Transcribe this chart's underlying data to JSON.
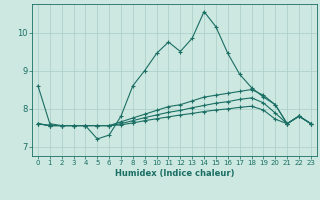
{
  "xlabel": "Humidex (Indice chaleur)",
  "background_color": "#cce8e0",
  "grid_color": "#aacec6",
  "line_color": "#1a6e64",
  "xlim": [
    -0.5,
    23.5
  ],
  "ylim": [
    6.75,
    10.75
  ],
  "yticks": [
    7,
    8,
    9,
    10
  ],
  "xticks": [
    0,
    1,
    2,
    3,
    4,
    5,
    6,
    7,
    8,
    9,
    10,
    11,
    12,
    13,
    14,
    15,
    16,
    17,
    18,
    19,
    20,
    21,
    22,
    23
  ],
  "lines": [
    {
      "x": [
        0,
        1,
        2,
        3,
        4,
        5,
        6,
        7,
        8,
        9,
        10,
        11,
        12,
        13,
        14,
        15,
        16,
        17,
        18,
        19,
        20,
        21,
        22,
        23
      ],
      "y": [
        8.6,
        7.6,
        7.55,
        7.55,
        7.55,
        7.2,
        7.3,
        7.8,
        8.6,
        9.0,
        9.45,
        9.75,
        9.5,
        9.85,
        10.55,
        10.15,
        9.45,
        8.9,
        8.55,
        8.3,
        8.1,
        7.6,
        7.8,
        7.6
      ]
    },
    {
      "x": [
        0,
        1,
        2,
        3,
        4,
        5,
        6,
        7,
        8,
        9,
        10,
        11,
        12,
        13,
        14,
        15,
        16,
        17,
        18,
        19,
        20,
        21,
        22,
        23
      ],
      "y": [
        7.6,
        7.55,
        7.55,
        7.55,
        7.55,
        7.55,
        7.55,
        7.65,
        7.75,
        7.85,
        7.95,
        8.05,
        8.1,
        8.2,
        8.3,
        8.35,
        8.4,
        8.45,
        8.5,
        8.35,
        8.1,
        7.6,
        7.8,
        7.6
      ]
    },
    {
      "x": [
        0,
        1,
        2,
        3,
        4,
        5,
        6,
        7,
        8,
        9,
        10,
        11,
        12,
        13,
        14,
        15,
        16,
        17,
        18,
        19,
        20,
        21,
        22,
        23
      ],
      "y": [
        7.6,
        7.55,
        7.55,
        7.55,
        7.55,
        7.55,
        7.55,
        7.6,
        7.68,
        7.76,
        7.83,
        7.9,
        7.95,
        8.02,
        8.08,
        8.14,
        8.18,
        8.24,
        8.28,
        8.15,
        7.88,
        7.6,
        7.8,
        7.6
      ]
    },
    {
      "x": [
        0,
        1,
        2,
        3,
        4,
        5,
        6,
        7,
        8,
        9,
        10,
        11,
        12,
        13,
        14,
        15,
        16,
        17,
        18,
        19,
        20,
        21,
        22,
        23
      ],
      "y": [
        7.6,
        7.55,
        7.55,
        7.55,
        7.55,
        7.55,
        7.55,
        7.57,
        7.62,
        7.68,
        7.73,
        7.78,
        7.83,
        7.87,
        7.92,
        7.96,
        7.99,
        8.03,
        8.06,
        7.96,
        7.72,
        7.6,
        7.8,
        7.6
      ]
    }
  ]
}
